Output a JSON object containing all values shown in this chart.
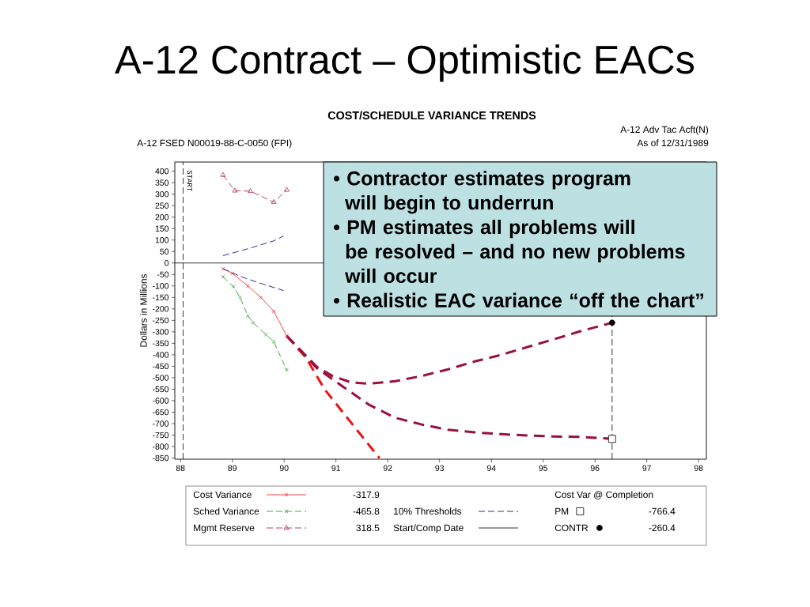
{
  "chart_data": {
    "type": "line",
    "title": "A-12 Contract – Optimistic EACs",
    "subtitle": "COST/SCHEDULE VARIANCE TRENDS",
    "ylabel": "Dollars in Millions",
    "legend_title": "Cost Var @ Completion",
    "annotations": [
      "A-12 Adv Tac Acft(N)",
      "A-12 FSED N00019-88-C-0050 (FPI)",
      "As of 12/31/1989",
      "Start/Comp Date",
      "-317.9",
      "-465.8",
      "318.5",
      "-766.4",
      "-260.4",
      "• Contractor estimates program\nwill begin to underrun",
      "• PM estimates all problems will\nbe resolved – and no new problems\nwill occur",
      "• Realistic EAC variance “off the chart”"
    ],
    "xlim": [
      87.89,
      98.15
    ],
    "xticks": [
      88,
      89,
      90,
      91,
      92,
      93,
      94,
      95,
      96,
      97,
      98
    ],
    "ylim": [
      -855,
      440
    ],
    "yticks": [
      -850,
      -800,
      -750,
      -700,
      -650,
      -600,
      -550,
      -500,
      -450,
      -400,
      -350,
      -300,
      -250,
      -200,
      -150,
      -100,
      -50,
      0,
      50,
      100,
      150,
      200,
      250,
      300,
      350,
      400
    ],
    "legend": "bottom",
    "ref_lines": [
      {
        "axis": "y",
        "value": 0,
        "color": "#000000"
      },
      {
        "axis": "x",
        "value": 88.05,
        "label": "START",
        "color": "#000000",
        "line_style": "dashed"
      },
      {
        "axis": "x",
        "value": 96.33,
        "color": "#000000",
        "line_style": "dashed"
      }
    ],
    "series": [
      {
        "name": "Cost Variance",
        "color": "#ff3333",
        "line_style": "solid",
        "marker": "cross",
        "x": [
          88.82,
          89.0,
          89.3,
          89.55,
          89.8,
          90.05
        ],
        "values": [
          -25,
          -45,
          -100,
          -150,
          -210,
          -317.9
        ]
      },
      {
        "name": "Sched Variance",
        "color": "#339933",
        "line_style": "dashed",
        "marker": "cross",
        "x": [
          88.82,
          89.02,
          89.15,
          89.3,
          89.4,
          89.65,
          89.8,
          90.05
        ],
        "values": [
          -60,
          -103,
          -150,
          -230,
          -260,
          -312,
          -343,
          -465.8
        ]
      },
      {
        "name": "Mgmt Reserve",
        "color": "#b0304f",
        "line_style": "dashed",
        "marker": "triangle",
        "x": [
          88.82,
          89.05,
          89.35,
          89.8,
          90.05
        ],
        "values": [
          383,
          315,
          313,
          265,
          318.5
        ]
      },
      {
        "name": "10% Thresholds",
        "color": "#1a1a80",
        "line_style": "dashed",
        "x": [
          88.82,
          89.3,
          89.81,
          89.99,
          null,
          88.82,
          89.15,
          89.51,
          89.99
        ],
        "values": [
          32,
          62,
          97,
          118,
          null,
          -25,
          -58,
          -86,
          -120
        ]
      },
      {
        "color": "#ee1111",
        "line_style": "dashed",
        "x": [
          90.05,
          90.42,
          90.78,
          91.3,
          91.84
        ],
        "values": [
          -317.9,
          -412,
          -550,
          -698,
          -850
        ]
      },
      {
        "color": "#99113c",
        "line_style": "dashed",
        "x": [
          90.05,
          90.63,
          90.93,
          91.29,
          91.64,
          92.15,
          92.66,
          93.17,
          93.68,
          94.18,
          94.7,
          95.21,
          95.71,
          96.33
        ],
        "values": [
          -317.9,
          -452,
          -492,
          -520,
          -526,
          -515,
          -492,
          -463,
          -429,
          -401,
          -366,
          -332,
          -298,
          -260.4
        ]
      },
      {
        "color": "#99113c",
        "line_style": "dashed",
        "x": [
          90.05,
          90.63,
          91.13,
          91.64,
          92.15,
          92.66,
          93.17,
          93.68,
          94.19,
          94.7,
          95.21,
          95.71,
          96.33
        ],
        "values": [
          -317.9,
          -458,
          -538,
          -618,
          -675,
          -704,
          -727,
          -738,
          -746,
          -752,
          -756,
          -758,
          -766.4
        ]
      },
      {
        "name": "PM",
        "type": "scatter",
        "color": "#000000",
        "marker": "square",
        "x": [
          96.33
        ],
        "values": [
          -766.4
        ]
      },
      {
        "name": "CONTR",
        "type": "scatter",
        "color": "#000000",
        "marker": "circle",
        "x": [
          96.33
        ],
        "values": [
          -260.4
        ]
      }
    ]
  }
}
